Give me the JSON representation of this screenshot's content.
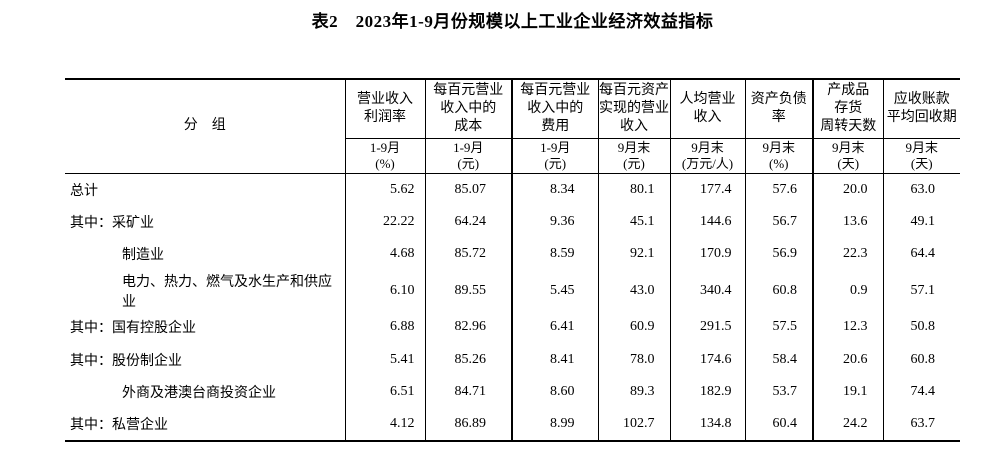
{
  "title": "表2　2023年1-9月份规模以上工业企业经济效益指标",
  "table": {
    "group_header": "分　组",
    "columns": [
      {
        "label": "营业收入\n利润率",
        "period": "1-9月\n(%)"
      },
      {
        "label": "每百元营业\n收入中的\n成本",
        "period": "1-9月\n(元)"
      },
      {
        "label": "每百元营业\n收入中的\n费用",
        "period": "1-9月\n(元)"
      },
      {
        "label": "每百元资产\n实现的营业\n收入",
        "period": "9月末\n(元)"
      },
      {
        "label": "人均营业\n收入",
        "period": "9月末\n(万元/人)"
      },
      {
        "label": "资产负债\n率",
        "period": "9月末\n(%)"
      },
      {
        "label": "产成品\n存货\n周转天数",
        "period": "9月末\n(天)"
      },
      {
        "label": "应收账款\n平均回收期",
        "period": "9月末\n(天)"
      }
    ],
    "rows": [
      {
        "label": "总计",
        "indent": 0,
        "values": [
          "5.62",
          "85.07",
          "8.34",
          "80.1",
          "177.4",
          "57.6",
          "20.0",
          "63.0"
        ]
      },
      {
        "label": "其中：采矿业",
        "indent": 0,
        "values": [
          "22.22",
          "64.24",
          "9.36",
          "45.1",
          "144.6",
          "56.7",
          "13.6",
          "49.1"
        ]
      },
      {
        "label": "制造业",
        "indent": 1,
        "values": [
          "4.68",
          "85.72",
          "8.59",
          "92.1",
          "170.9",
          "56.9",
          "22.3",
          "64.4"
        ]
      },
      {
        "label": "电力、热力、燃气及水生产和供应业",
        "indent": 1,
        "values": [
          "6.10",
          "89.55",
          "5.45",
          "43.0",
          "340.4",
          "60.8",
          "0.9",
          "57.1"
        ]
      },
      {
        "label": "其中：国有控股企业",
        "indent": 0,
        "values": [
          "6.88",
          "82.96",
          "6.41",
          "60.9",
          "291.5",
          "57.5",
          "12.3",
          "50.8"
        ]
      },
      {
        "label": "其中：股份制企业",
        "indent": 0,
        "values": [
          "5.41",
          "85.26",
          "8.41",
          "78.0",
          "174.6",
          "58.4",
          "20.6",
          "60.8"
        ]
      },
      {
        "label": "外商及港澳台商投资企业",
        "indent": 1,
        "values": [
          "6.51",
          "84.71",
          "8.60",
          "89.3",
          "182.9",
          "53.7",
          "19.1",
          "74.4"
        ]
      },
      {
        "label": "其中：私营企业",
        "indent": 0,
        "values": [
          "4.12",
          "86.89",
          "8.99",
          "102.7",
          "134.8",
          "60.4",
          "24.2",
          "63.7"
        ]
      }
    ]
  }
}
